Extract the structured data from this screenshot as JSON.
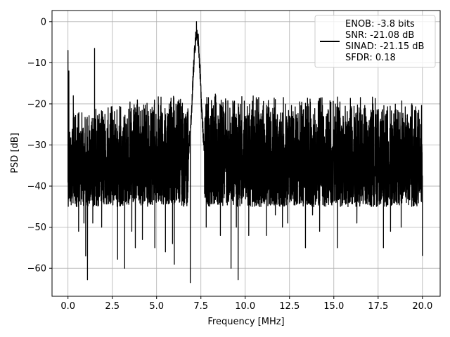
{
  "chart_data": {
    "type": "line",
    "title": "",
    "xlabel": "Frequency [MHz]",
    "ylabel": "PSD [dB]",
    "xlim": [
      -0.9,
      21.0
    ],
    "ylim": [
      -66.8,
      2.7
    ],
    "xticks": [
      0.0,
      2.5,
      5.0,
      7.5,
      10.0,
      12.5,
      15.0,
      17.5,
      20.0
    ],
    "xtick_labels": [
      "0.0",
      "2.5",
      "5.0",
      "7.5",
      "10.0",
      "12.5",
      "15.0",
      "17.5",
      "20.0"
    ],
    "yticks": [
      0,
      -10,
      -20,
      -30,
      -40,
      -50,
      -60
    ],
    "ytick_labels": [
      "0",
      "−10",
      "−20",
      "−30",
      "−40",
      "−50",
      "−60"
    ],
    "grid": true,
    "legend_position": "upper right",
    "legend_lines": [
      "ENOB: -3.8 bits",
      "SNR: -21.08 dB",
      "SINAD: -21.15 dB",
      "SFDR: 0.18"
    ],
    "series": [
      {
        "color": "#000000",
        "noise_floor": {
          "x_range": [
            0.0,
            20.0
          ],
          "typical_upper": -20,
          "typical_lower": -45,
          "envelope_upper": [
            [
              0.0,
              -22
            ],
            [
              2.5,
              -20
            ],
            [
              5.0,
              -18
            ],
            [
              7.5,
              -17
            ],
            [
              10.0,
              -18
            ],
            [
              12.5,
              -18
            ],
            [
              15.0,
              -18
            ],
            [
              17.5,
              -18
            ],
            [
              20.0,
              -20
            ]
          ]
        },
        "peaks": [
          {
            "x": 0.0,
            "y": -7.0
          },
          {
            "x": 0.05,
            "y": -12.0
          },
          {
            "x": 0.3,
            "y": -18.0
          },
          {
            "x": 1.5,
            "y": -6.5
          },
          {
            "x": 7.25,
            "y": 0.0
          }
        ],
        "main_lobe": [
          [
            6.8,
            -30
          ],
          [
            6.95,
            -22
          ],
          [
            7.05,
            -12
          ],
          [
            7.15,
            -5
          ],
          [
            7.25,
            0.0
          ],
          [
            7.35,
            -3
          ],
          [
            7.45,
            -10
          ],
          [
            7.55,
            -20
          ],
          [
            7.7,
            -30
          ]
        ],
        "dips": [
          {
            "x": 0.5,
            "y": -45
          },
          {
            "x": 0.6,
            "y": -51
          },
          {
            "x": 0.9,
            "y": -49
          },
          {
            "x": 1.0,
            "y": -57
          },
          {
            "x": 1.1,
            "y": -62.8
          },
          {
            "x": 1.4,
            "y": -49
          },
          {
            "x": 1.9,
            "y": -50
          },
          {
            "x": 2.8,
            "y": -45
          },
          {
            "x": 2.8,
            "y": -57.8
          },
          {
            "x": 3.2,
            "y": -60
          },
          {
            "x": 3.6,
            "y": -51
          },
          {
            "x": 3.8,
            "y": -55
          },
          {
            "x": 4.2,
            "y": -53
          },
          {
            "x": 4.9,
            "y": -55
          },
          {
            "x": 5.5,
            "y": -56
          },
          {
            "x": 5.9,
            "y": -54
          },
          {
            "x": 6.0,
            "y": -59
          },
          {
            "x": 6.6,
            "y": -43
          },
          {
            "x": 6.9,
            "y": -63.5
          },
          {
            "x": 7.8,
            "y": -50
          },
          {
            "x": 8.6,
            "y": -52
          },
          {
            "x": 9.2,
            "y": -60
          },
          {
            "x": 9.5,
            "y": -50
          },
          {
            "x": 9.6,
            "y": -62.8
          },
          {
            "x": 10.2,
            "y": -52
          },
          {
            "x": 10.8,
            "y": -45
          },
          {
            "x": 11.2,
            "y": -52
          },
          {
            "x": 11.7,
            "y": -47
          },
          {
            "x": 12.1,
            "y": -50
          },
          {
            "x": 12.4,
            "y": -49
          },
          {
            "x": 13.4,
            "y": -55
          },
          {
            "x": 13.8,
            "y": -47
          },
          {
            "x": 14.2,
            "y": -51
          },
          {
            "x": 14.6,
            "y": -44
          },
          {
            "x": 15.2,
            "y": -55
          },
          {
            "x": 15.8,
            "y": -45
          },
          {
            "x": 16.3,
            "y": -49
          },
          {
            "x": 16.8,
            "y": -44
          },
          {
            "x": 17.8,
            "y": -55
          },
          {
            "x": 18.2,
            "y": -51
          },
          {
            "x": 18.8,
            "y": -50
          },
          {
            "x": 19.2,
            "y": -43
          },
          {
            "x": 20.0,
            "y": -57
          }
        ]
      }
    ]
  }
}
